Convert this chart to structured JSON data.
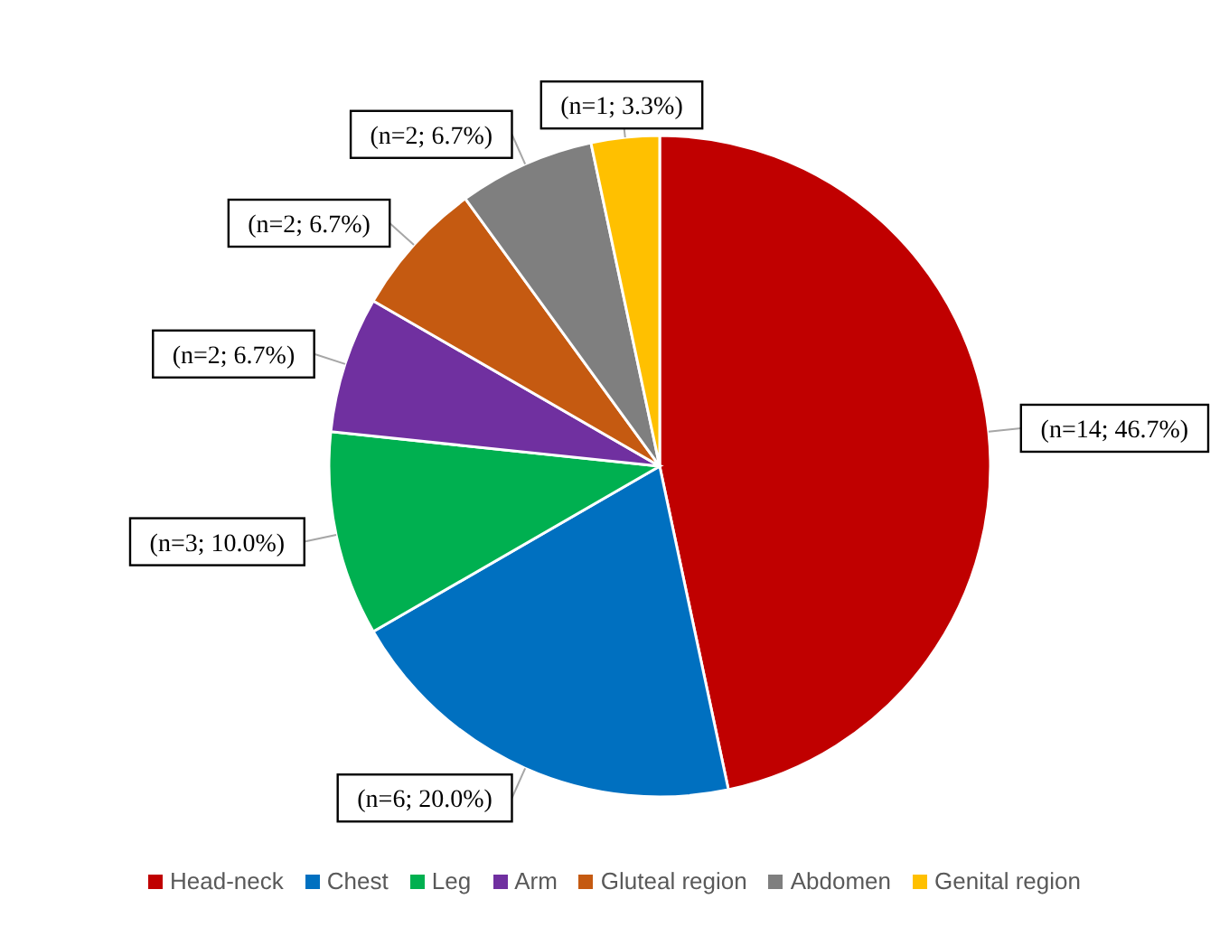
{
  "chart_data": {
    "type": "pie",
    "categories": [
      "Head-neck",
      "Chest",
      "Leg",
      "Arm",
      "Gluteal region",
      "Abdomen",
      "Genital region"
    ],
    "values": [
      14,
      6,
      3,
      2,
      2,
      2,
      1
    ],
    "value_labels": [
      "(n=14; 46.7%)",
      "(n=6; 20.0%)",
      "(n=3; 10.0%)",
      "(n=2; 6.7%)",
      "(n=2; 6.7%)",
      "(n=2; 6.7%)",
      "(n=1; 3.3%)"
    ],
    "colors": [
      "#c00000",
      "#0070c0",
      "#00b050",
      "#7030a0",
      "#c55a11",
      "#7f7f7f",
      "#ffc000"
    ],
    "legend": "bottom"
  }
}
